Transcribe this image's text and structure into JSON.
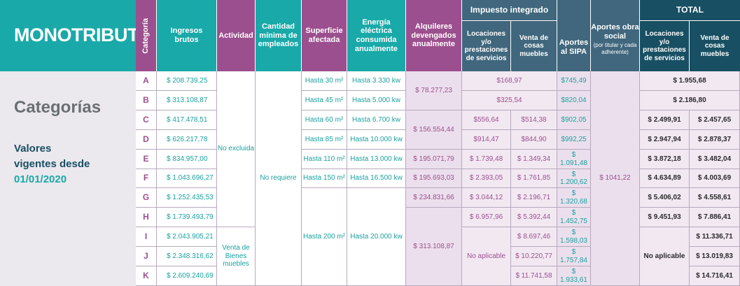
{
  "brand": {
    "title": "MONOTRIBUTO"
  },
  "side": {
    "heading": "Categorías",
    "vigentes_line1": "Valores",
    "vigentes_line2": "vigentes desde",
    "vigentes_date": "01/01/2020"
  },
  "headers": {
    "categoria": "Categoría",
    "ingresos": "Ingresos brutos",
    "actividad": "Actividad",
    "empleados": "Cantidad mínima de empleados",
    "superficie": "Superficie afectada",
    "energia": "Energía eléctrica consumida anualmente",
    "alquileres": "Alquileres devengados anualmente",
    "impuesto_integrado": "Impuesto integrado",
    "imp_locaciones": "Locaciones y/o prestaciones de servicios",
    "imp_venta": "Venta de cosas muebles",
    "aportes_sipa": "Aportes al SIPA",
    "obra_social": "Aportes obra social",
    "obra_social_note": "(por titular y cada adherente)",
    "total": "TOTAL",
    "tot_locaciones": "Locaciones y/o prestaciones de servicios",
    "tot_venta": "Venta de cosas muebles"
  },
  "categories": [
    "A",
    "B",
    "C",
    "D",
    "E",
    "F",
    "G",
    "H",
    "I",
    "J",
    "K"
  ],
  "ingresos": [
    "$ 208.739,25",
    "$ 313.108,87",
    "$ 417.478,51",
    "$ 626.217,78",
    "$ 834.957,00",
    "$ 1.043.696,27",
    "$ 1.252.435,53",
    "$ 1.739.493,79",
    "$ 2.043.905,21",
    "$ 2.348.316,62",
    "$ 2.609.240,69"
  ],
  "actividad": {
    "no_excluida": "No excluida",
    "venta_line1": "Venta de",
    "venta_line2": "Bienes",
    "venta_line3": "muebles"
  },
  "empleados": {
    "no_requiere": "No requiere"
  },
  "superficie": [
    "Hasta 30 m²",
    "Hasta 45 m²",
    "Hasta 60 m²",
    "Hasta 85 m²",
    "Hasta 110 m²",
    "Hasta 150 m²",
    "Hasta 200 m²"
  ],
  "energia": [
    "Hasta 3.330 kw",
    "Hasta 5.000 kw",
    "Hasta 6.700 kw",
    "Hasta 10.000 kw",
    "Hasta 13.000 kw",
    "Hasta 16.500 kw",
    "Hasta 20.000 kw"
  ],
  "alquileres": [
    "$ 78.277,23",
    "$ 156.554,44",
    "$ 195.071,79",
    "$ 195.693,03",
    "$ 234.831,66",
    "$ 313.108,87"
  ],
  "imp_shared": [
    "$168,97",
    "$325,54"
  ],
  "imp_locaciones": [
    "$556,64",
    "$914,47",
    "$ 1.739,48",
    "$ 2.393,05",
    "$ 3.044,12",
    "$ 6.957,96"
  ],
  "imp_venta": [
    "$514,38",
    "$844,90",
    "$ 1.349,34",
    "$ 1.761,85",
    "$ 2.196,71",
    "$ 5.392,44",
    "$ 8.697,46",
    "$ 10.220,77",
    "$ 11.741,58"
  ],
  "no_aplicable": "No aplicable",
  "sipa": [
    "$745,49",
    "$820,04",
    "$902,05",
    "$992,25",
    "$ 1.091,48",
    "$ 1.200,62",
    "$ 1.320,68",
    "$ 1.452,75",
    "$ 1.598,03",
    "$ 1.757,84",
    "$ 1.933,61"
  ],
  "obra_social_value": "$ 1041,22",
  "tot_shared": [
    "$ 1.955,68",
    "$ 2.186,80"
  ],
  "tot_locaciones": [
    "$ 2.499,91",
    "$ 2.947,94",
    "$ 3.872,18",
    "$ 4.634,89",
    "$ 5.406,02",
    "$ 9.451,93"
  ],
  "tot_venta": [
    "$ 2.457,65",
    "$ 2.878,37",
    "$ 3.482,04",
    "$ 4.003,69",
    "$ 4.558,61",
    "$ 7.886,41",
    "$ 11.336,71",
    "$ 13.019,83",
    "$ 14.716,41"
  ],
  "colors": {
    "teal": "#19a9a8",
    "purple": "#9c4f8e",
    "slate": "#40677d",
    "navy": "#184f63"
  }
}
